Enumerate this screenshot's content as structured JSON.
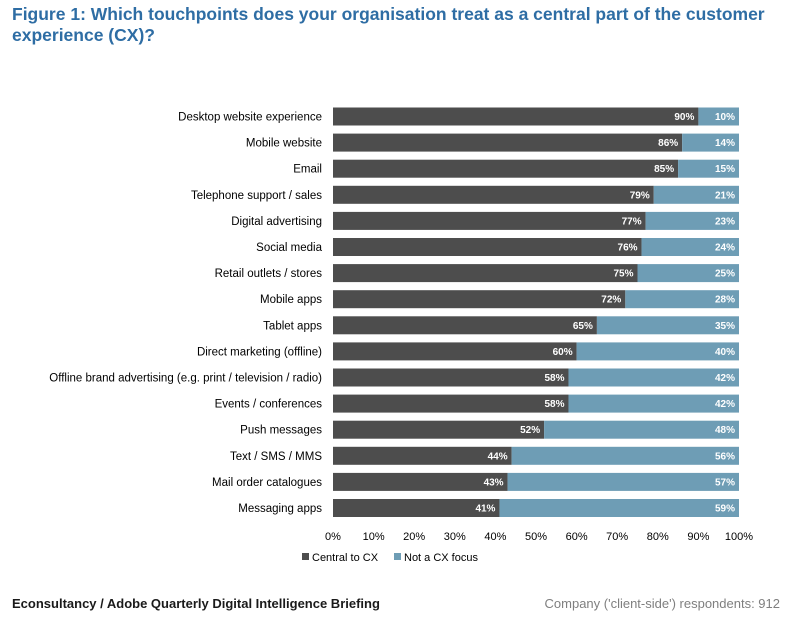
{
  "title": "Figure 1: Which touchpoints does your organisation treat as a central part of the customer experience (CX)?",
  "footer": {
    "source": "Econsultancy / Adobe Quarterly Digital Intelligence Briefing",
    "respondents": "Company ('client-side') respondents: 912"
  },
  "colors": {
    "central": "#4d4d4d",
    "not_focus": "#6e9db5",
    "title": "#2e6da4"
  },
  "chart_data": {
    "type": "bar",
    "orientation": "horizontal",
    "stacked": true,
    "title": "Figure 1: Which touchpoints does your organisation treat as a central part of the customer experience (CX)?",
    "categories": [
      "Desktop website experience",
      "Mobile website",
      "Email",
      "Telephone support / sales",
      "Digital advertising",
      "Social media",
      "Retail outlets / stores",
      "Mobile apps",
      "Tablet apps",
      "Direct marketing (offline)",
      "Offline brand advertising (e.g. print / television / radio)",
      "Events / conferences",
      "Push messages",
      "Text / SMS / MMS",
      "Mail order catalogues",
      "Messaging apps"
    ],
    "series": [
      {
        "name": "Central to CX",
        "values": [
          90,
          86,
          85,
          79,
          77,
          76,
          75,
          72,
          65,
          60,
          58,
          58,
          52,
          44,
          43,
          41
        ]
      },
      {
        "name": "Not a CX focus",
        "values": [
          10,
          14,
          15,
          21,
          23,
          24,
          25,
          28,
          35,
          40,
          42,
          42,
          48,
          56,
          57,
          59
        ]
      }
    ],
    "xlim": [
      0,
      100
    ],
    "xticks": [
      "0%",
      "10%",
      "20%",
      "30%",
      "40%",
      "50%",
      "60%",
      "70%",
      "80%",
      "90%",
      "100%"
    ],
    "legend": "bottom",
    "grid": false
  }
}
